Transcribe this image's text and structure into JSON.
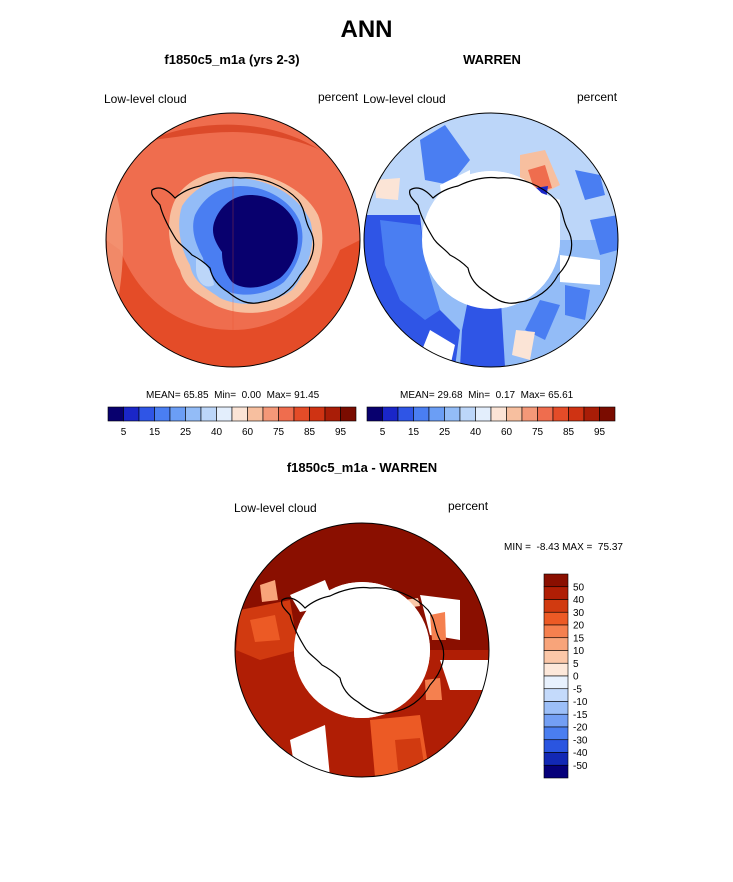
{
  "title": "ANN",
  "chart_data": [
    {
      "type": "heatmap",
      "projection": "south-polar-stereographic",
      "title": "f1850c5_m1a (yrs 2-3)",
      "left_label": "Low-level cloud",
      "right_label": "percent",
      "stats": {
        "mean": "65.85",
        "min": "0.00",
        "max": "91.45"
      },
      "stats_labels": {
        "mean": "MEAN=",
        "min": "Min=",
        "max": "Max="
      },
      "colorbar": {
        "orientation": "horizontal",
        "levels": [
          5,
          10,
          15,
          20,
          25,
          30,
          40,
          50,
          60,
          70,
          75,
          80,
          85,
          90,
          95
        ],
        "tick_labels": [
          "5",
          "15",
          "25",
          "40",
          "60",
          "75",
          "85",
          "95"
        ],
        "colors": [
          "#08006e",
          "#1a26c8",
          "#2f55e6",
          "#4a7ef2",
          "#6b9ef5",
          "#93bcf7",
          "#bcd6f9",
          "#e3eefc",
          "#fbe4d6",
          "#f7bf9f",
          "#f49878",
          "#ef6d4e",
          "#e44c28",
          "#cf3313",
          "#a91d07",
          "#7a0c00"
        ]
      }
    },
    {
      "type": "heatmap",
      "projection": "south-polar-stereographic",
      "title": "WARREN",
      "left_label": "Low-level cloud",
      "right_label": "percent",
      "stats": {
        "mean": "29.68",
        "min": "0.17",
        "max": "65.61"
      },
      "stats_labels": {
        "mean": "MEAN=",
        "min": "Min=",
        "max": "Max="
      },
      "colorbar": {
        "orientation": "horizontal",
        "levels": [
          5,
          10,
          15,
          20,
          25,
          30,
          40,
          50,
          60,
          70,
          75,
          80,
          85,
          90,
          95
        ],
        "tick_labels": [
          "5",
          "15",
          "25",
          "40",
          "60",
          "75",
          "85",
          "95"
        ]
      }
    },
    {
      "type": "heatmap",
      "projection": "south-polar-stereographic",
      "title": "f1850c5_m1a - WARREN",
      "left_label": "Low-level cloud",
      "right_label": "percent",
      "stats_text": "MIN =  -8.43 MAX =  75.37",
      "colorbar": {
        "orientation": "vertical",
        "tick_labels": [
          "50",
          "40",
          "30",
          "20",
          "15",
          "10",
          "5",
          "0",
          "-5",
          "-10",
          "-15",
          "-20",
          "-30",
          "-40",
          "-50"
        ],
        "colors": [
          "#8a0f00",
          "#b01e05",
          "#d13a10",
          "#ec5a25",
          "#f5804f",
          "#f8a47a",
          "#fbc7a8",
          "#fde8da",
          "#e8f1fd",
          "#c4dafb",
          "#9cbff8",
          "#739ff4",
          "#4a7ef0",
          "#2a55e0",
          "#1228b5",
          "#06007a"
        ]
      }
    }
  ]
}
